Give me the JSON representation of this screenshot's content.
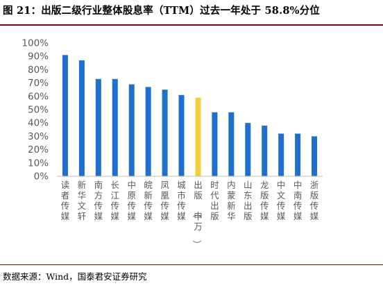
{
  "figure": {
    "title": "图 21：出版二级行业整体股息率（TTM）过去一年处于 58.8%分位",
    "source": "数据来源：Wind，国泰君安证券研究"
  },
  "colors": {
    "bar": "#1f6fce",
    "highlight": "#f4cd3f",
    "rule": "#8a0000",
    "axis": "#bfbfbf",
    "tick_text": "#595959"
  },
  "chart_data": {
    "type": "bar",
    "title": "",
    "xlabel": "",
    "ylabel": "",
    "ylim": [
      0,
      100
    ],
    "yticks": [
      "0%",
      "10%",
      "20%",
      "30%",
      "40%",
      "50%",
      "60%",
      "70%",
      "80%",
      "90%",
      "100%"
    ],
    "grid": false,
    "legend": "none",
    "categories": [
      "读者传媒",
      "新华文轩",
      "南方传媒",
      "长江传媒",
      "中原传媒",
      "皖新传媒",
      "凤凰传媒",
      "城市传媒",
      "出版（申万）",
      "时代出版",
      "内蒙新华",
      "山东出版",
      "龙版传媒",
      "中文传媒",
      "中南传媒",
      "浙版传媒"
    ],
    "values": [
      91,
      87,
      73,
      73,
      69,
      67,
      65,
      61,
      59,
      48,
      48,
      40,
      38,
      32,
      32,
      30
    ],
    "highlight_index": 8
  }
}
